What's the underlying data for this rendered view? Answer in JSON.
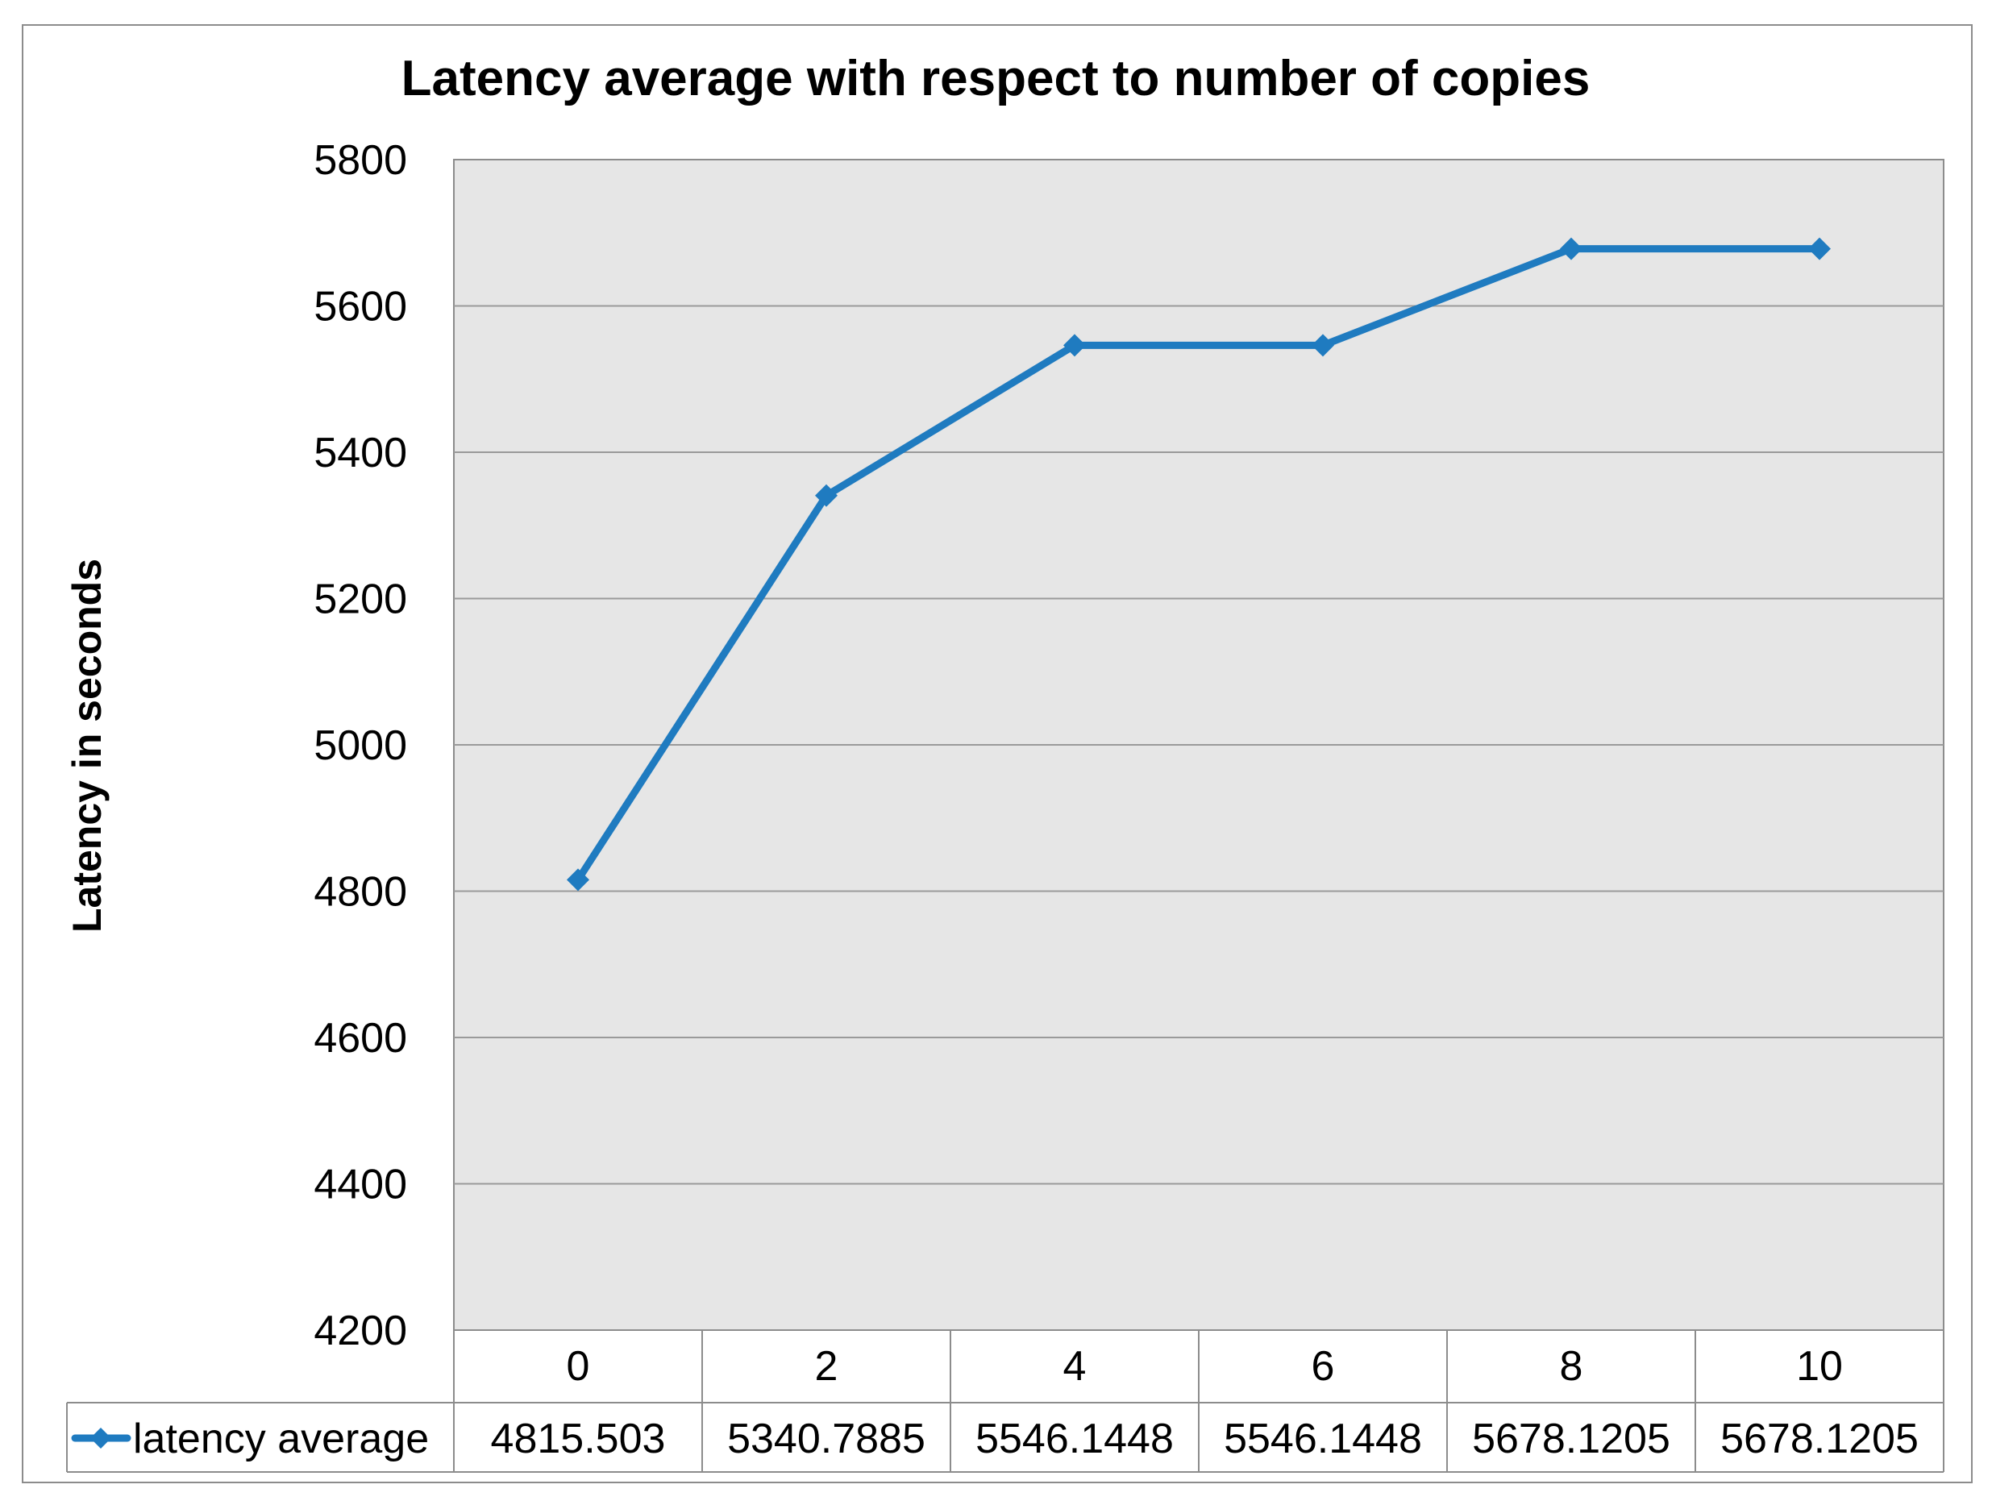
{
  "chart_data": {
    "type": "line",
    "title": "Latency average with respect to number of copies",
    "xlabel": "",
    "ylabel": "Latency in seconds",
    "categories": [
      "0",
      "2",
      "4",
      "6",
      "8",
      "10"
    ],
    "series": [
      {
        "name": "latency average",
        "values": [
          4815.503,
          5340.7885,
          5546.1448,
          5546.1448,
          5678.1205,
          5678.1205
        ],
        "value_labels": [
          "4815.503",
          "5340.7885",
          "5546.1448",
          "5546.1448",
          "5678.1205",
          "5678.1205"
        ],
        "color": "#1f7bc0",
        "marker": "diamond"
      }
    ],
    "ylim": [
      4200,
      5800
    ],
    "yticks": [
      4200,
      4400,
      4600,
      4800,
      5000,
      5200,
      5400,
      5600,
      5800
    ],
    "grid": true,
    "legend": "data-table-left",
    "plot_background": "#e6e6e6",
    "grid_color": "#9a9a9a"
  }
}
